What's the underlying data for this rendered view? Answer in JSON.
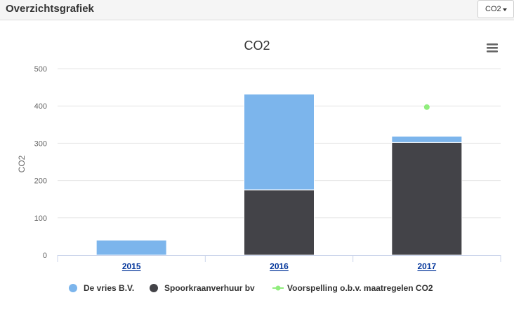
{
  "header": {
    "title": "Overzichtsgrafiek"
  },
  "selector": {
    "selected": "CO2"
  },
  "icons": {
    "menu": "hamburger-menu-icon",
    "dropdown": "caret-down-icon"
  },
  "colors": {
    "series_de_vries": "#7cb5ec",
    "series_spoorkraan": "#434348",
    "series_voorspelling": "#90ed7d"
  },
  "chart_data": {
    "type": "bar",
    "stacked": true,
    "title": "CO2",
    "xlabel": "",
    "ylabel": "CO2",
    "ylim": [
      0,
      500
    ],
    "yticks": [
      "0",
      "100",
      "200",
      "300",
      "400",
      "500"
    ],
    "categories": [
      "2015",
      "2016",
      "2017"
    ],
    "series": [
      {
        "name": "Spoorkraanverhuur bv",
        "type": "bar",
        "values": [
          0,
          175,
          302
        ]
      },
      {
        "name": "De vries B.V.",
        "type": "bar",
        "values": [
          40,
          257,
          17
        ]
      },
      {
        "name": "Voorspelling o.b.v. maatregelen CO2",
        "type": "scatter",
        "values": [
          null,
          null,
          397
        ]
      }
    ],
    "legend": [
      "De vries B.V.",
      "Spoorkraanverhuur bv",
      "Voorspelling o.b.v. maatregelen CO2"
    ],
    "legend_position": "bottom",
    "grid": true
  }
}
